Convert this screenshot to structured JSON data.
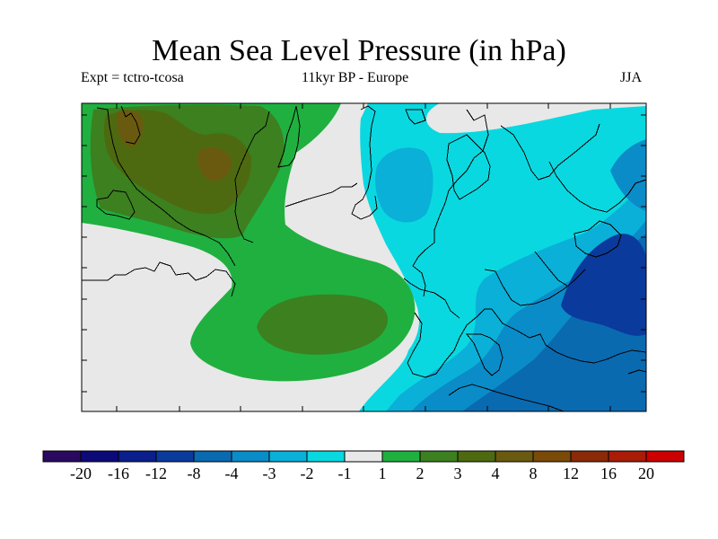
{
  "title": "Mean Sea Level Pressure (in hPa)",
  "subtitle": {
    "left": "Expt = tctro-tcosa",
    "center": "11kyr BP - Europe",
    "right": "JJA"
  },
  "colorbar": {
    "colors": [
      "#2a0a5e",
      "#0c0a78",
      "#0a1e8c",
      "#0a3a9c",
      "#0a6ab0",
      "#0a8cc8",
      "#0ab0d8",
      "#0ad8e0",
      "#e8e8e8",
      "#20b040",
      "#3c8020",
      "#4e6a10",
      "#6a5a10",
      "#7a4a08",
      "#8a2a08",
      "#a81c08",
      "#cc0000"
    ],
    "labels": [
      "-20",
      "-16",
      "-12",
      "-8",
      "-4",
      "-3",
      "-2",
      "-1",
      "1",
      "2",
      "3",
      "4",
      "8",
      "12",
      "16",
      "20"
    ]
  },
  "map": {
    "fields": [
      {
        "name": "grey-zone",
        "color": "#e8e8e8"
      },
      {
        "name": "cyan-zone",
        "color": "#0ad8e0"
      },
      {
        "name": "light-blue-zone",
        "color": "#0ab0d8"
      },
      {
        "name": "mid-blue-zone",
        "color": "#0a8cc8"
      },
      {
        "name": "blue-zone",
        "color": "#0a6ab0"
      },
      {
        "name": "dark-blue-zone",
        "color": "#0a3a9c"
      },
      {
        "name": "green-zone",
        "color": "#20b040"
      },
      {
        "name": "olive-zone",
        "color": "#3c8020"
      },
      {
        "name": "dark-olive-zone",
        "color": "#4e6a10"
      },
      {
        "name": "brown-zone",
        "color": "#6a5a10"
      }
    ]
  }
}
